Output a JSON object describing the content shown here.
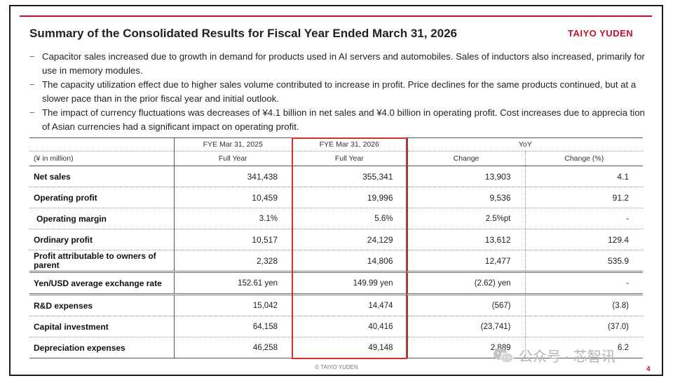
{
  "title": "Summary of the Consolidated Results for Fiscal Year Ended March 31, 2026",
  "logo": "TAIYO YUDEN",
  "bullets": [
    "Capacitor sales increased due to growth in demand for products used in AI servers and automobiles. Sales of inductors also increased, primarily for use in memory modules.",
    "The capacity utilization effect due to higher sales volume contributed to increase in profit. Price declines for the same products continued, but at a slower pace than in the prior fiscal year and initial outlook.",
    "The impact of currency fluctuations was decreases of ¥4.1 billion in net sales and ¥4.0 billion in operating profit. Cost increases due to apprecia tion of Asian currencies had a significant impact on operating profit."
  ],
  "bullet_mark": "−",
  "table": {
    "unit_label": "(¥ in million)",
    "header_top": [
      "FYE Mar 31, 2025",
      "FYE Mar 31, 2026",
      "YoY"
    ],
    "header_sub": [
      "Full Year",
      "Full Year",
      "Change",
      "Change (%)"
    ],
    "rows": [
      {
        "label": "Net sales",
        "v2025": "341,438",
        "v2026": "355,341",
        "change": "13,903",
        "pct": "4.1"
      },
      {
        "label": "Operating profit",
        "v2025": "10,459",
        "v2026": "19,996",
        "change": "9,536",
        "pct": "91.2"
      },
      {
        "label": "Operating margin",
        "v2025": "3.1%",
        "v2026": "5.6%",
        "change": "2.5%pt",
        "pct": "-"
      },
      {
        "label": "Ordinary profit",
        "v2025": "10,517",
        "v2026": "24,129",
        "change": "13,612",
        "pct": "129.4"
      },
      {
        "label": "Profit attributable to owners of parent",
        "v2025": "2,328",
        "v2026": "14,806",
        "change": "12,477",
        "pct": "535.9"
      },
      {
        "label": "Yen/USD average exchange rate",
        "v2025": "152.61 yen",
        "v2026": "149.99 yen",
        "change": "(2.62) yen",
        "pct": "-"
      },
      {
        "label": "R&D expenses",
        "v2025": "15,042",
        "v2026": "14,474",
        "change": "(567)",
        "pct": "(3.8)"
      },
      {
        "label": "Capital investment",
        "v2025": "64,158",
        "v2026": "40,416",
        "change": "(23,741)",
        "pct": "(37.0)"
      },
      {
        "label": "Depreciation expenses",
        "v2025": "46,258",
        "v2026": "49,148",
        "change": "2,889",
        "pct": "6.2"
      }
    ]
  },
  "footer": {
    "copyright": "© TAIYO YUDEN",
    "page_number": "4"
  },
  "watermark": {
    "text": "公众号 · 芯智讯",
    "icon": "wechat-icon"
  },
  "colors": {
    "brand_red": "#c8102e",
    "highlight_box": "#d0312d"
  }
}
